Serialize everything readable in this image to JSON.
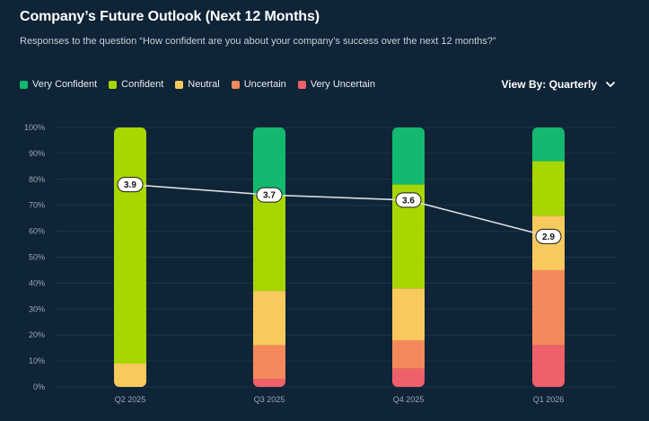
{
  "header": {
    "title": "Company’s Future Outlook (Next 12 Months)",
    "subtitle": "Responses to the question “How confident are you about your company’s success over the next 12 months?”"
  },
  "view_by": {
    "label": "View By:",
    "value": "Quarterly",
    "icon": "chevron-down-icon"
  },
  "colors": {
    "background": "#0f2436",
    "grid": "#1f3549",
    "line": "#d8dde2"
  },
  "chart_data": {
    "type": "bar",
    "stacked": true,
    "categories": [
      "Q2 2025",
      "Q3 2025",
      "Q4 2025",
      "Q1 2026"
    ],
    "y_ticks": [
      "0%",
      "10%",
      "20%",
      "30%",
      "40%",
      "50%",
      "60%",
      "70%",
      "80%",
      "90%",
      "100%"
    ],
    "ylim": [
      0,
      100
    ],
    "grid": true,
    "legend_position": "top-left",
    "series": [
      {
        "name": "Very Uncertain",
        "color": "#f0606a",
        "values": [
          0,
          3,
          7,
          16
        ]
      },
      {
        "name": "Uncertain",
        "color": "#f5895c",
        "values": [
          0,
          13,
          11,
          29
        ]
      },
      {
        "name": "Neutral",
        "color": "#f8c95c",
        "values": [
          9,
          21,
          20,
          21
        ]
      },
      {
        "name": "Confident",
        "color": "#a8d600",
        "values": [
          91,
          37,
          40,
          21
        ]
      },
      {
        "name": "Very Confident",
        "color": "#12b96e",
        "values": [
          0,
          26,
          22,
          13
        ]
      }
    ],
    "legend_order": [
      "Very Confident",
      "Confident",
      "Neutral",
      "Uncertain",
      "Very Uncertain"
    ],
    "average_line": {
      "values": [
        3.9,
        3.7,
        3.6,
        2.9
      ],
      "labels": [
        "3.9",
        "3.7",
        "3.6",
        "2.9"
      ],
      "position_pct": [
        78,
        74,
        72,
        58
      ]
    }
  }
}
